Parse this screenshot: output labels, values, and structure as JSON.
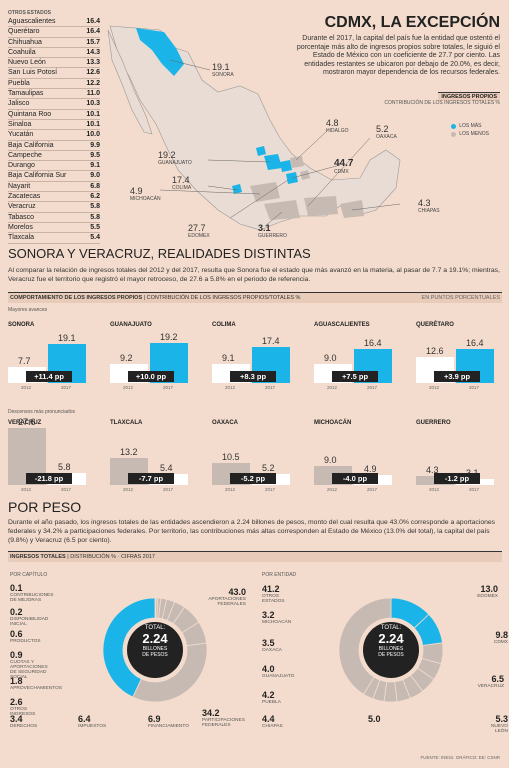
{
  "state_list": {
    "header": "OTROS ESTADOS",
    "items": [
      {
        "name": "Aguascalientes",
        "value": "16.4"
      },
      {
        "name": "Querétaro",
        "value": "16.4"
      },
      {
        "name": "Chihuahua",
        "value": "15.7"
      },
      {
        "name": "Coahuila",
        "value": "14.3"
      },
      {
        "name": "Nuevo León",
        "value": "13.3"
      },
      {
        "name": "San Luis Potosí",
        "value": "12.6"
      },
      {
        "name": "Puebla",
        "value": "12.2"
      },
      {
        "name": "Tamaulipas",
        "value": "11.0"
      },
      {
        "name": "Jalisco",
        "value": "10.3"
      },
      {
        "name": "Quintana Roo",
        "value": "10.1"
      },
      {
        "name": "Sinaloa",
        "value": "10.1"
      },
      {
        "name": "Yucatán",
        "value": "10.0"
      },
      {
        "name": "Baja California",
        "value": "9.9"
      },
      {
        "name": "Campeche",
        "value": "9.5"
      },
      {
        "name": "Durango",
        "value": "9.1"
      },
      {
        "name": "Baja California Sur",
        "value": "9.0"
      },
      {
        "name": "Nayarit",
        "value": "6.8"
      },
      {
        "name": "Zacatecas",
        "value": "6.2"
      },
      {
        "name": "Veracruz",
        "value": "5.8"
      },
      {
        "name": "Tabasco",
        "value": "5.8"
      },
      {
        "name": "Morelos",
        "value": "5.5"
      },
      {
        "name": "Tlaxcala",
        "value": "5.4"
      }
    ]
  },
  "map": {
    "labels": [
      {
        "value": "19.1",
        "name": "SONORA"
      },
      {
        "value": "4.8",
        "name": "HIDALGO"
      },
      {
        "value": "5.2",
        "name": "OAXACA"
      },
      {
        "value": "19.2",
        "name": "GUANAJUATO"
      },
      {
        "value": "44.7",
        "name": "CDMX"
      },
      {
        "value": "17.4",
        "name": "COLIMA"
      },
      {
        "value": "4.9",
        "name": "MICHOACÁN"
      },
      {
        "value": "4.3",
        "name": "CHIAPAS"
      },
      {
        "value": "27.7",
        "name": "EDOMEX"
      },
      {
        "value": "3.1",
        "name": "GUERRERO"
      }
    ],
    "legend": [
      {
        "label": "LOS MÁS",
        "color": "#1ab4e8"
      },
      {
        "label": "LOS MENOS",
        "color": "#c7bab2"
      }
    ]
  },
  "header": {
    "title": "CDMX, LA EXCEPCIÓN",
    "description": "Durante el 2017, la capital del país fue la entidad que ostentó el porcentaje más alto de ingresos propios sobre totales, le siguió el Estado de México con un coeficiente de 27.7 por ciento. Las entidades restantes se ubicaron por debajo de 20.0%, es decir, mostraron mayor dependencia de los recursos federales.",
    "ip_title": "INGRESOS PROPIOS",
    "ip_sub": "CONTRIBUCIÓN DE LOS INGRESOS TOTALES %"
  },
  "section2": {
    "title": "SONORA Y VERACRUZ, REALIDADES DISTINTAS",
    "description": "Al comparar la relación de ingresos totales del 2012 y del 2017, resulta que Sonora fue el estado que más avanzó en la materia, al pasar de 7.7 a 19.1%; mientras, Veracruz fue el territorio que registró el mayor retroceso, de 27.6 a 5.8% en el periodo de referencia.",
    "chart_header": "COMPORTAMIENTO DE LOS INGRESOS PROPIOS",
    "chart_header_sub": "CONTRIBUCIÓN DE LOS INGRESOS PROPIOS/TOTALES %",
    "chart_header_right": "EN PUNTOS PORCENTUALES",
    "group_up": "Mayores avances",
    "group_down": "Descensos más pronunciados"
  },
  "section3": {
    "title": "POR PESO",
    "description": "Durante el año pasado, los ingresos totales de las entidades ascendieron a 2.24 billones de pesos, monto del cual resulta que 43.0% corresponde a aportaciones federales y 34.2% a participaciones federales. Por territorio, las contribuciones más altas corresponden al Estado de México (13.0% del total), la capital del país (9.8%) y Veracruz (6.5 por ciento).",
    "header": "INGRESOS TOTALES",
    "header_sub": "DISTRIBUCIÓN % · CIFRAS 2017",
    "left_title": "POR CAPÍTULO",
    "right_title": "POR ENTIDAD",
    "total_label": "TOTAL:",
    "total_value": "2.24",
    "total_unit1": "BILLONES",
    "total_unit2": "DE PESOS",
    "source": "FUENTE: INEGI. GRÁFICO: EE: CSNR"
  },
  "chart_data": [
    {
      "type": "bar",
      "title": "COMPORTAMIENTO DE LOS INGRESOS PROPIOS",
      "categories": [
        "2012",
        "2017"
      ],
      "ylim": [
        0,
        30
      ],
      "series": [
        {
          "name": "SONORA",
          "values": [
            7.7,
            19.1
          ],
          "change": "+11.4 pp"
        },
        {
          "name": "GUANAJUATO",
          "values": [
            9.2,
            19.2
          ],
          "change": "+10.0 pp"
        },
        {
          "name": "COLIMA",
          "values": [
            9.1,
            17.4
          ],
          "change": "+8.3 pp"
        },
        {
          "name": "AGUASCALIENTES",
          "values": [
            9.0,
            16.4
          ],
          "change": "+7.5 pp"
        },
        {
          "name": "QUERÉTARO",
          "values": [
            12.6,
            16.4
          ],
          "change": "+3.9 pp"
        },
        {
          "name": "VERACRUZ",
          "values": [
            27.6,
            5.8
          ],
          "change": "-21.8 pp"
        },
        {
          "name": "TLAXCALA",
          "values": [
            13.2,
            5.4
          ],
          "change": "-7.7 pp"
        },
        {
          "name": "OAXACA",
          "values": [
            10.5,
            5.2
          ],
          "change": "-5.2 pp"
        },
        {
          "name": "MICHOACÁN",
          "values": [
            9.0,
            4.9
          ],
          "change": "-4.0 pp"
        },
        {
          "name": "GUERRERO",
          "values": [
            4.3,
            3.1
          ],
          "change": "-1.2 pp"
        }
      ]
    },
    {
      "type": "pie",
      "title": "POR CAPÍTULO",
      "slices": [
        {
          "label": "CONTRIBUCIONES DE MEJORAS",
          "value": 0.1
        },
        {
          "label": "DISPONIBILIDAD INICIAL",
          "value": 0.2
        },
        {
          "label": "PRODUCTOS",
          "value": 0.6
        },
        {
          "label": "CUOTAS Y APORTACIONES DE SEGURIDAD SOCIAL",
          "value": 0.9
        },
        {
          "label": "APROVECHAMIENTOS",
          "value": 1.8
        },
        {
          "label": "OTROS INGRESOS",
          "value": 2.6
        },
        {
          "label": "DERECHOS",
          "value": 3.4
        },
        {
          "label": "IMPUESTOS",
          "value": 6.4
        },
        {
          "label": "FINANCIAMIENTO",
          "value": 6.9
        },
        {
          "label": "PARTICIPACIONES FEDERALES",
          "value": 34.2
        },
        {
          "label": "APORTACIONES FEDERALES",
          "value": 43.0
        }
      ]
    },
    {
      "type": "pie",
      "title": "POR ENTIDAD",
      "slices": [
        {
          "label": "EDOMEX",
          "value": 13.0
        },
        {
          "label": "CDMX",
          "value": 9.8
        },
        {
          "label": "VERACRUZ",
          "value": 6.5
        },
        {
          "label": "NUEVO LEÓN",
          "value": 5.3
        },
        {
          "label": "",
          "value": 5.0
        },
        {
          "label": "CHIAPAS",
          "value": 4.4
        },
        {
          "label": "PUEBLA",
          "value": 4.2
        },
        {
          "label": "GUANAJUATO",
          "value": 4.0
        },
        {
          "label": "OAXACA",
          "value": 3.5
        },
        {
          "label": "MICHOACÁN",
          "value": 3.2
        },
        {
          "label": "OTROS ESTADOS",
          "value": 41.2
        }
      ]
    }
  ]
}
